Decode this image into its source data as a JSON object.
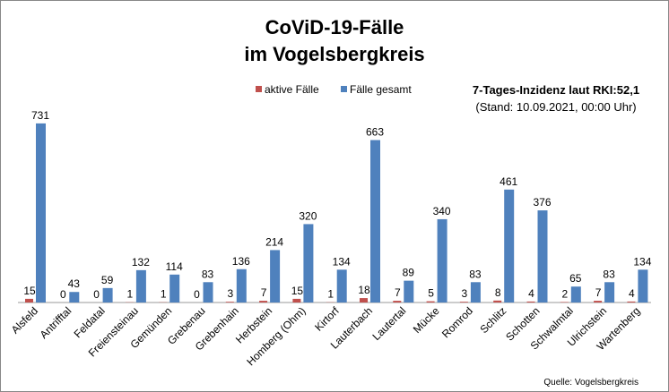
{
  "chart_data": {
    "type": "bar",
    "title": [
      "CoViD-19-Fälle",
      "im Vogelsbergkreis"
    ],
    "annotation": [
      "7-Tages-Inzidenz laut RKI:52,1",
      "(Stand: 10.09.2021, 00:00 Uhr)"
    ],
    "source": "Quelle: Vogelsbergkreis",
    "legend_position": "top",
    "grid": false,
    "ylim": [
      0,
      800
    ],
    "categories": [
      "Alsfeld",
      "Antrifftal",
      "Feldatal",
      "Freiensteinau",
      "Gemünden",
      "Grebenau",
      "Grebenhain",
      "Herbstein",
      "Homberg (Ohm)",
      "Kirtorf",
      "Lauterbach",
      "Lautertal",
      "Mücke",
      "Romrod",
      "Schlitz",
      "Schotten",
      "Schwalmtal",
      "Ulrichstein",
      "Wartenberg"
    ],
    "series": [
      {
        "name": "aktive Fälle",
        "color": "#c0504d",
        "values": [
          15,
          0,
          0,
          1,
          1,
          0,
          3,
          7,
          15,
          1,
          18,
          7,
          5,
          3,
          8,
          4,
          2,
          7,
          4
        ]
      },
      {
        "name": "Fälle gesamt",
        "color": "#4f81bd",
        "values": [
          731,
          43,
          59,
          132,
          114,
          83,
          136,
          214,
          320,
          134,
          663,
          89,
          340,
          83,
          461,
          376,
          65,
          83,
          134
        ]
      }
    ]
  }
}
